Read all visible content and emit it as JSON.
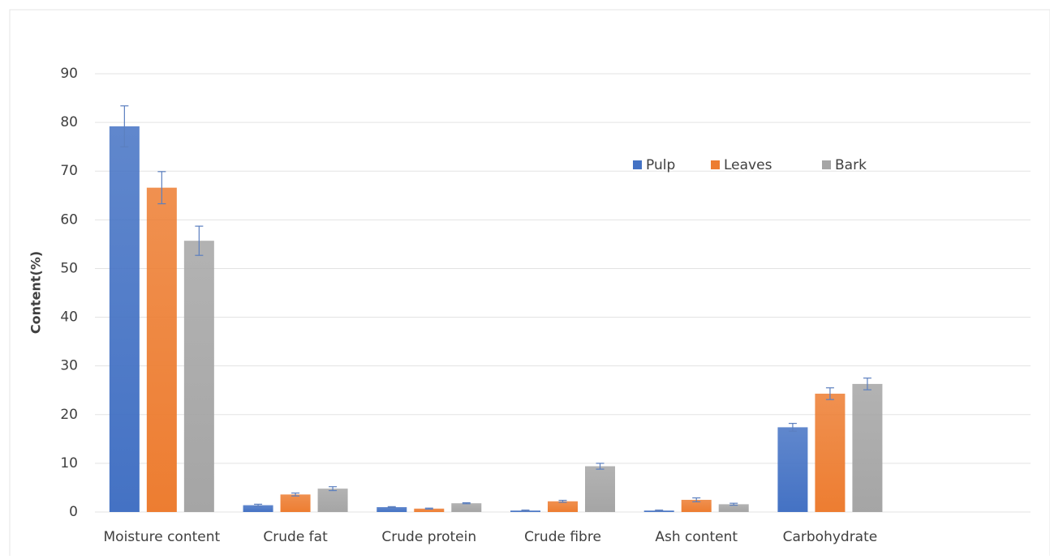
{
  "chart_data": {
    "type": "bar",
    "y_label": "Content(%)",
    "categories": [
      "Moisture content",
      "Crude fat",
      "Crude protein",
      "Crude fibre",
      "Ash content",
      "Carbohydrate",
      null
    ],
    "series": [
      {
        "name": "Pulp",
        "color": "#4472c4",
        "values": [
          79.2,
          1.4,
          1.0,
          0.3,
          0.3,
          17.4,
          null
        ],
        "errors": [
          4.2,
          0.2,
          0.1,
          0.1,
          0.1,
          0.8,
          null
        ]
      },
      {
        "name": "Leaves",
        "color": "#ed7d31",
        "values": [
          66.6,
          3.6,
          0.7,
          2.2,
          2.5,
          24.3,
          null
        ],
        "errors": [
          3.3,
          0.3,
          0.1,
          0.2,
          0.4,
          1.2,
          null
        ]
      },
      {
        "name": "Bark",
        "color": "#a5a5a5",
        "values": [
          55.7,
          4.8,
          1.8,
          9.4,
          1.6,
          26.3,
          null
        ],
        "errors": [
          3.0,
          0.4,
          0.1,
          0.6,
          0.2,
          1.2,
          null
        ]
      }
    ],
    "ylim": [
      0,
      90
    ],
    "yticks": [
      0,
      10,
      20,
      30,
      40,
      50,
      60,
      70,
      80,
      90
    ],
    "grid": true,
    "legend": "upper right"
  }
}
